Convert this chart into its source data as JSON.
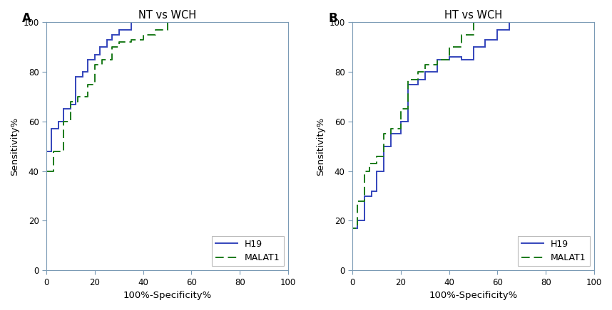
{
  "panel_A": {
    "title": "NT vs WCH",
    "h19_x": [
      0,
      0,
      0,
      2,
      2,
      5,
      5,
      7,
      7,
      10,
      10,
      12,
      12,
      15,
      15,
      17,
      17,
      20,
      20,
      22,
      22,
      25,
      25,
      27,
      27,
      30,
      30,
      35,
      35,
      40,
      40,
      45,
      45,
      50,
      50,
      57,
      57,
      100
    ],
    "h19_y": [
      0,
      0,
      48,
      48,
      57,
      57,
      60,
      60,
      65,
      65,
      67,
      67,
      78,
      78,
      80,
      80,
      85,
      85,
      87,
      87,
      90,
      90,
      93,
      93,
      95,
      95,
      97,
      97,
      100,
      100,
      100,
      100,
      100,
      100,
      100,
      100,
      100,
      100
    ],
    "malat1_x": [
      0,
      0,
      3,
      3,
      7,
      7,
      10,
      10,
      13,
      13,
      17,
      17,
      20,
      20,
      23,
      23,
      27,
      27,
      30,
      30,
      35,
      35,
      40,
      40,
      45,
      45,
      50,
      50,
      60,
      60,
      100
    ],
    "malat1_y": [
      0,
      40,
      40,
      48,
      48,
      60,
      60,
      68,
      68,
      70,
      70,
      75,
      75,
      83,
      83,
      85,
      85,
      90,
      90,
      92,
      92,
      93,
      93,
      95,
      95,
      97,
      97,
      100,
      100,
      100,
      100
    ]
  },
  "panel_B": {
    "title": "HT vs WCH",
    "h19_x": [
      0,
      0,
      2,
      2,
      5,
      5,
      8,
      8,
      10,
      10,
      13,
      13,
      16,
      16,
      20,
      20,
      23,
      23,
      27,
      27,
      30,
      30,
      35,
      35,
      40,
      40,
      45,
      45,
      50,
      50,
      55,
      55,
      60,
      60,
      65,
      65,
      100
    ],
    "h19_y": [
      0,
      17,
      17,
      20,
      20,
      30,
      30,
      32,
      32,
      40,
      40,
      50,
      50,
      55,
      55,
      60,
      60,
      75,
      75,
      77,
      77,
      80,
      80,
      85,
      85,
      86,
      86,
      85,
      85,
      90,
      90,
      93,
      93,
      97,
      97,
      100,
      100
    ],
    "malat1_x": [
      0,
      0,
      2,
      2,
      5,
      5,
      7,
      7,
      10,
      10,
      13,
      13,
      16,
      16,
      20,
      20,
      23,
      23,
      27,
      27,
      30,
      30,
      35,
      35,
      40,
      40,
      45,
      45,
      50,
      50,
      57,
      57,
      62,
      62,
      100
    ],
    "malat1_y": [
      0,
      17,
      17,
      28,
      28,
      40,
      40,
      43,
      43,
      46,
      46,
      55,
      55,
      57,
      57,
      65,
      65,
      77,
      77,
      80,
      80,
      83,
      83,
      85,
      85,
      90,
      90,
      95,
      95,
      100,
      100,
      100,
      100,
      100,
      100
    ]
  },
  "h19_color": "#3344bb",
  "malat1_color": "#1a7a1a",
  "xlabel": "100%-Specificity%",
  "ylabel": "Sensitivity%",
  "xlim": [
    0,
    100
  ],
  "ylim": [
    0,
    100
  ],
  "xticks": [
    0,
    20,
    40,
    60,
    80,
    100
  ],
  "yticks": [
    0,
    20,
    40,
    60,
    80,
    100
  ],
  "label_fontsize": 9.5,
  "title_fontsize": 10.5,
  "tick_fontsize": 8.5,
  "legend_fontsize": 9,
  "line_width": 1.4,
  "spine_color": "#7a9ab5",
  "tick_color": "#7a9ab5",
  "background_color": "#ffffff"
}
